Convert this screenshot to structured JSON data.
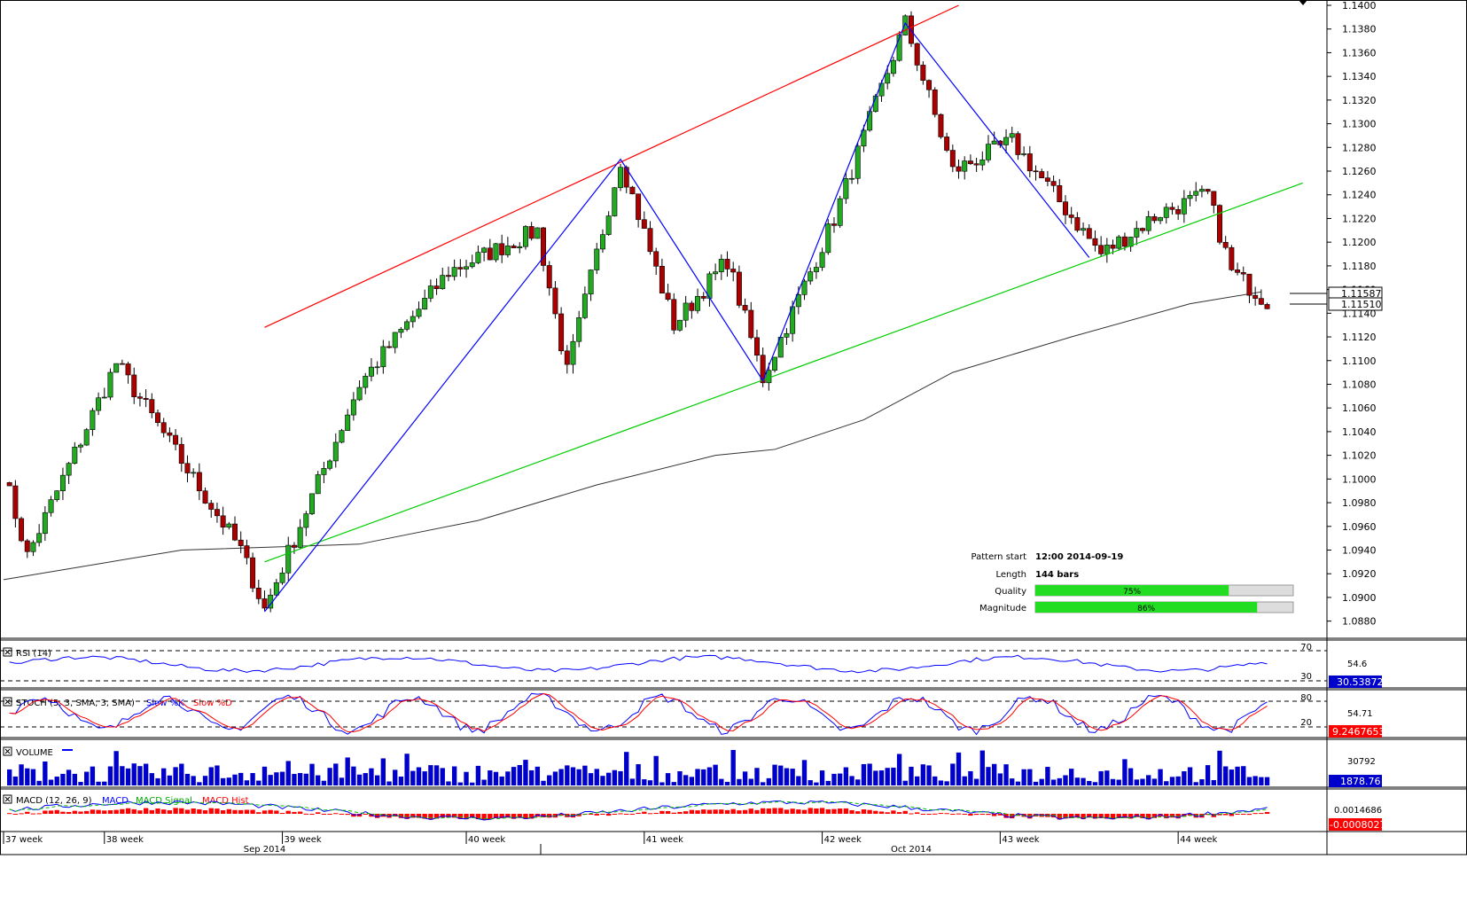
{
  "chart_data": {
    "type": "candlestick",
    "price_axis": {
      "min": 1.087,
      "max": 1.14,
      "ticks": [
        "1.1400",
        "1.1380",
        "1.1360",
        "1.1340",
        "1.1320",
        "1.1300",
        "1.1280",
        "1.1260",
        "1.1240",
        "1.1220",
        "1.1200",
        "1.1180",
        "1.1160",
        "1.1140",
        "1.1120",
        "1.1100",
        "1.1080",
        "1.1060",
        "1.1040",
        "1.1020",
        "1.1000",
        "1.0980",
        "1.0960",
        "1.0940",
        "1.0920",
        "1.0900",
        "1.0880"
      ],
      "last_labels": [
        "1.11587",
        "1.11510"
      ]
    },
    "bar_count": 144,
    "key_points": [
      {
        "bar": 0,
        "price": 1.1005
      },
      {
        "bar": 4,
        "price": 1.0935
      },
      {
        "bar": 19,
        "price": 1.1098
      },
      {
        "bar": 40,
        "price": 1.094
      },
      {
        "bar": 44,
        "price": 1.089
      },
      {
        "bar": 60,
        "price": 1.108
      },
      {
        "bar": 75,
        "price": 1.1175
      },
      {
        "bar": 90,
        "price": 1.121
      },
      {
        "bar": 95,
        "price": 1.109
      },
      {
        "bar": 104,
        "price": 1.127
      },
      {
        "bar": 113,
        "price": 1.113
      },
      {
        "bar": 122,
        "price": 1.1185
      },
      {
        "bar": 128,
        "price": 1.1085
      },
      {
        "bar": 140,
        "price": 1.122
      },
      {
        "bar": 152,
        "price": 1.1385
      },
      {
        "bar": 160,
        "price": 1.126
      },
      {
        "bar": 170,
        "price": 1.1285
      },
      {
        "bar": 185,
        "price": 1.119
      },
      {
        "bar": 195,
        "price": 1.1225
      },
      {
        "bar": 203,
        "price": 1.124
      },
      {
        "bar": 207,
        "price": 1.1175
      },
      {
        "bar": 213,
        "price": 1.115
      }
    ],
    "pattern_lines": [
      {
        "role": "resistance",
        "color": "#ff0000",
        "from": {
          "bar": 44,
          "price": 1.1128
        },
        "to": {
          "bar": 161,
          "price": 1.14
        }
      },
      {
        "role": "support",
        "color": "#00cc00",
        "from": {
          "bar": 44,
          "price": 1.093
        },
        "to": {
          "bar": 219,
          "price": 1.125
        }
      },
      {
        "role": "zigzag",
        "color": "#0000ff",
        "points": [
          {
            "bar": 44,
            "price": 1.0888
          },
          {
            "bar": 104,
            "price": 1.127
          },
          {
            "bar": 128,
            "price": 1.1083
          },
          {
            "bar": 152,
            "price": 1.1385
          },
          {
            "bar": 183,
            "price": 1.1187
          }
        ]
      }
    ],
    "moving_average": {
      "color": "#333333",
      "points": [
        {
          "bar": 0,
          "price": 1.0915
        },
        {
          "bar": 30,
          "price": 1.094
        },
        {
          "bar": 60,
          "price": 1.0945
        },
        {
          "bar": 80,
          "price": 1.0965
        },
        {
          "bar": 100,
          "price": 1.0995
        },
        {
          "bar": 120,
          "price": 1.102
        },
        {
          "bar": 130,
          "price": 1.1025
        },
        {
          "bar": 145,
          "price": 1.105
        },
        {
          "bar": 160,
          "price": 1.109
        },
        {
          "bar": 180,
          "price": 1.112
        },
        {
          "bar": 200,
          "price": 1.1148
        },
        {
          "bar": 212,
          "price": 1.1158
        }
      ]
    },
    "week_labels": [
      {
        "label": "37 week",
        "bar": 0
      },
      {
        "label": "38 week",
        "bar": 17
      },
      {
        "label": "39 week",
        "bar": 47
      },
      {
        "label": "40 week",
        "bar": 78
      },
      {
        "label": "41 week",
        "bar": 108
      },
      {
        "label": "42 week",
        "bar": 138
      },
      {
        "label": "43 week",
        "bar": 168
      },
      {
        "label": "44 week",
        "bar": 198
      }
    ],
    "month_labels": [
      {
        "label": "Sep 2014",
        "bar": 44
      },
      {
        "label": "Oct 2014",
        "bar": 153
      }
    ],
    "pattern_info": {
      "pattern_start_label": "Pattern start",
      "pattern_start_value": "12:00 2014-09-19",
      "length_label": "Length",
      "length_value": "144 bars",
      "quality_label": "Quality",
      "quality_value": "75%",
      "quality_fraction": 0.75,
      "magnitude_label": "Magnitude",
      "magnitude_value": "86%",
      "magnitude_fraction": 0.86
    },
    "indicators": {
      "rsi": {
        "title": "RSI (14)",
        "levels": [
          "70",
          "54.6",
          "30"
        ],
        "current": "30.53872"
      },
      "stoch": {
        "title_prefix": "STOCH (5, 3, SMA, 3, SMA)",
        "slow_k": "Slow %K",
        "slow_d": "Slow %D",
        "levels": [
          "80",
          "54.71",
          "20"
        ],
        "current": "9.2467653"
      },
      "volume": {
        "title": "VOLUME",
        "level": "30792",
        "current": "1878.76"
      },
      "macd": {
        "title_prefix": "MACD (12, 26, 9)",
        "macd": "MACD",
        "signal": "MACD Signal",
        "hist": "MACD Hist",
        "level": "0.0014686",
        "current": "-0.0008027"
      }
    }
  }
}
